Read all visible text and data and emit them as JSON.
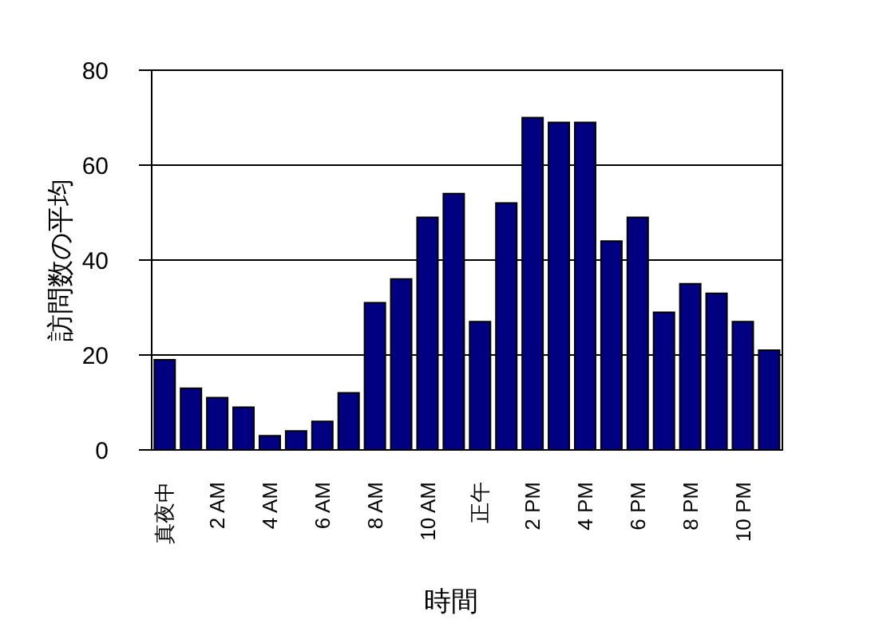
{
  "chart_data": {
    "type": "bar",
    "xlabel": "時間",
    "ylabel": "訪問数の平均",
    "categories": [
      "真夜中",
      null,
      "2 AM",
      null,
      "4 AM",
      null,
      "6 AM",
      null,
      "8 AM",
      null,
      "10 AM",
      null,
      "正午",
      null,
      "2 PM",
      null,
      "4 PM",
      null,
      "6 PM",
      null,
      "8 PM",
      null,
      "10 PM",
      null
    ],
    "values": [
      19,
      13,
      11,
      9,
      3,
      4,
      6,
      12,
      31,
      36,
      49,
      54,
      27,
      52,
      70,
      69,
      69,
      44,
      49,
      29,
      35,
      33,
      27,
      21
    ],
    "color": "#000080",
    "ylim": [
      0,
      80
    ],
    "yticks": [
      0,
      20,
      40,
      60,
      80
    ],
    "grid": "y"
  }
}
